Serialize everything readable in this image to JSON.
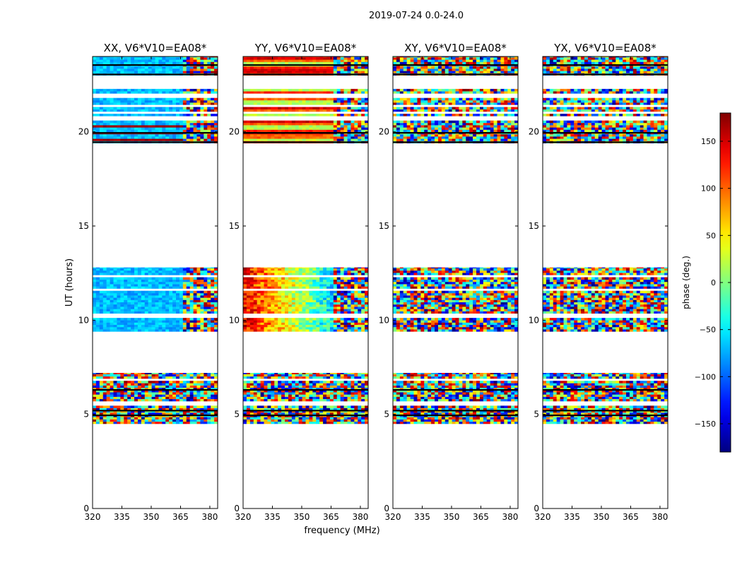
{
  "figure": {
    "suptitle": "2019-07-24 0.0-24.0",
    "xlabel": "frequency (MHz)",
    "ylabel": "UT (hours)"
  },
  "chart_data": {
    "type": "heatmap",
    "x": {
      "label": "frequency (MHz)",
      "range": [
        320,
        384
      ],
      "ticks": [
        320,
        335,
        350,
        365,
        380
      ],
      "tick_labels": [
        "320",
        "335",
        "350",
        "365",
        "380"
      ]
    },
    "y": {
      "label": "UT (hours)",
      "range": [
        0,
        24
      ],
      "ticks": [
        0,
        5,
        10,
        15,
        20
      ],
      "tick_labels": [
        "0",
        "5",
        "10",
        "15",
        "20"
      ]
    },
    "data_bands_hours": [
      {
        "start": 4.5,
        "end": 7.2
      },
      {
        "start": 9.4,
        "end": 12.8
      },
      {
        "start": 19.4,
        "end": 24.0
      }
    ],
    "gaps_hours": [
      [
        5.5,
        5.75
      ],
      [
        6.75,
        6.95
      ],
      [
        10.15,
        10.3
      ],
      [
        11.55,
        11.65
      ],
      [
        12.3,
        12.4
      ],
      [
        20.6,
        20.8
      ],
      [
        21.0,
        21.1
      ],
      [
        21.3,
        21.5
      ],
      [
        21.8,
        22.1
      ],
      [
        22.3,
        23.0
      ]
    ],
    "dark_rows_hours": [
      4.95,
      5.2,
      6.3,
      19.45,
      19.95,
      23.05,
      23.55
    ],
    "panels": [
      {
        "title": "XX, V6*V10=EA08*",
        "pattern": "xx"
      },
      {
        "title": "YY, V6*V10=EA08*",
        "pattern": "yy"
      },
      {
        "title": "XY, V6*V10=EA08*",
        "pattern": "noise"
      },
      {
        "title": "YX, V6*V10=EA08*",
        "pattern": "noise"
      }
    ],
    "colorbar": {
      "label": "phase (deg.)",
      "range": [
        -180,
        180
      ],
      "ticks": [
        150,
        100,
        50,
        0,
        -50,
        -100,
        -150
      ],
      "tick_labels": [
        "150",
        "100",
        "50",
        "0",
        "−50",
        "−100",
        "−150"
      ],
      "colormap": "jet"
    }
  }
}
